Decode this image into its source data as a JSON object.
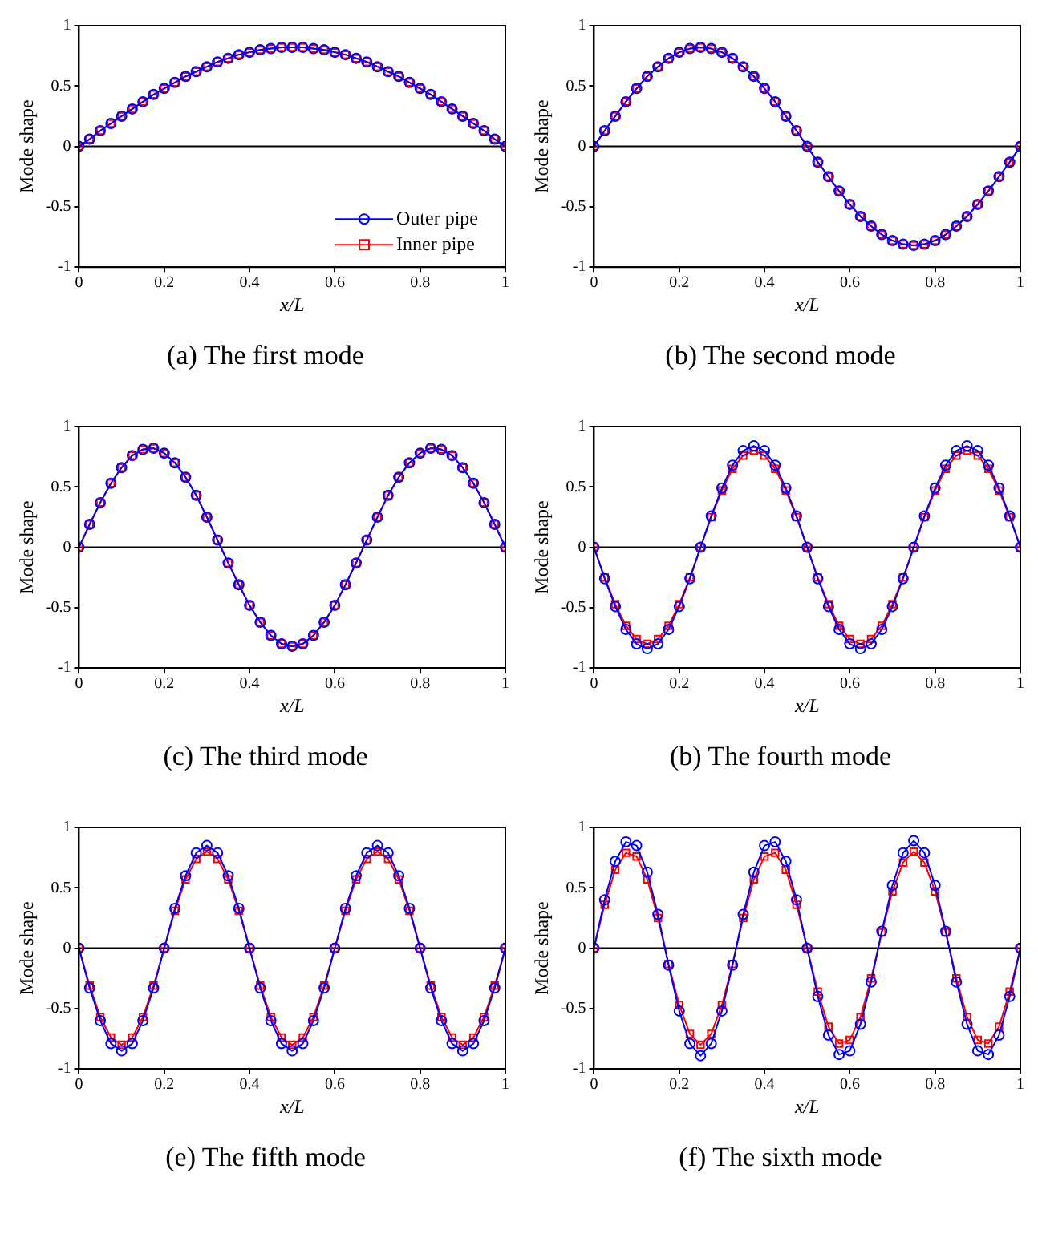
{
  "chart_data": [
    {
      "type": "line",
      "title": "(a) The first mode",
      "xlabel": "x/L",
      "ylabel": "Mode shape",
      "x": [
        0,
        0.025,
        0.05,
        0.075,
        0.1,
        0.125,
        0.15,
        0.175,
        0.2,
        0.225,
        0.25,
        0.275,
        0.3,
        0.325,
        0.35,
        0.375,
        0.4,
        0.425,
        0.45,
        0.475,
        0.5,
        0.525,
        0.55,
        0.575,
        0.6,
        0.625,
        0.65,
        0.675,
        0.7,
        0.725,
        0.75,
        0.775,
        0.8,
        0.825,
        0.85,
        0.875,
        0.9,
        0.925,
        0.95,
        0.975,
        1
      ],
      "xlim": [
        0,
        1
      ],
      "xticks": [
        0,
        0.2,
        0.4,
        0.6,
        0.8,
        1
      ],
      "ylim": [
        -1,
        1
      ],
      "yticks": [
        -1,
        -0.5,
        0,
        0.5,
        1
      ],
      "grid": false,
      "legend": "bottom right",
      "line_style": "solid",
      "ref_lines": [
        {
          "axis": "y",
          "value": 0,
          "color": "#000000"
        }
      ],
      "series": [
        {
          "name": "Outer pipe",
          "color": "#0000ff",
          "marker": "circle",
          "values": [
            0,
            0.06,
            0.13,
            0.19,
            0.25,
            0.31,
            0.37,
            0.43,
            0.48,
            0.53,
            0.58,
            0.62,
            0.66,
            0.7,
            0.73,
            0.76,
            0.78,
            0.8,
            0.81,
            0.82,
            0.82,
            0.82,
            0.81,
            0.8,
            0.78,
            0.76,
            0.73,
            0.7,
            0.66,
            0.62,
            0.58,
            0.53,
            0.48,
            0.43,
            0.37,
            0.31,
            0.25,
            0.19,
            0.13,
            0.06,
            0
          ]
        },
        {
          "name": "Inner pipe",
          "color": "#ff0000",
          "marker": "square",
          "values": [
            0,
            0.06,
            0.13,
            0.19,
            0.25,
            0.31,
            0.37,
            0.43,
            0.48,
            0.53,
            0.58,
            0.62,
            0.66,
            0.7,
            0.73,
            0.76,
            0.78,
            0.8,
            0.81,
            0.82,
            0.82,
            0.82,
            0.81,
            0.8,
            0.78,
            0.76,
            0.73,
            0.7,
            0.66,
            0.62,
            0.58,
            0.53,
            0.48,
            0.43,
            0.37,
            0.31,
            0.25,
            0.19,
            0.13,
            0.06,
            0
          ]
        }
      ]
    },
    {
      "type": "line",
      "title": "(b) The second mode",
      "xlabel": "x/L",
      "ylabel": "Mode shape",
      "x": [
        0,
        0.025,
        0.05,
        0.075,
        0.1,
        0.125,
        0.15,
        0.175,
        0.2,
        0.225,
        0.25,
        0.275,
        0.3,
        0.325,
        0.35,
        0.375,
        0.4,
        0.425,
        0.45,
        0.475,
        0.5,
        0.525,
        0.55,
        0.575,
        0.6,
        0.625,
        0.65,
        0.675,
        0.7,
        0.725,
        0.75,
        0.775,
        0.8,
        0.825,
        0.85,
        0.875,
        0.9,
        0.925,
        0.95,
        0.975,
        1
      ],
      "xlim": [
        0,
        1
      ],
      "xticks": [
        0,
        0.2,
        0.4,
        0.6,
        0.8,
        1
      ],
      "ylim": [
        -1,
        1
      ],
      "yticks": [
        -1,
        -0.5,
        0,
        0.5,
        1
      ],
      "grid": false,
      "line_style": "solid",
      "ref_lines": [
        {
          "axis": "y",
          "value": 0,
          "color": "#000000"
        }
      ],
      "series": [
        {
          "color": "#0000ff",
          "marker": "circle",
          "values": [
            0,
            0.13,
            0.25,
            0.37,
            0.48,
            0.58,
            0.66,
            0.73,
            0.78,
            0.81,
            0.82,
            0.81,
            0.78,
            0.73,
            0.66,
            0.58,
            0.48,
            0.37,
            0.25,
            0.13,
            0,
            -0.13,
            -0.25,
            -0.37,
            -0.48,
            -0.58,
            -0.66,
            -0.73,
            -0.78,
            -0.81,
            -0.82,
            -0.81,
            -0.78,
            -0.73,
            -0.66,
            -0.58,
            -0.48,
            -0.37,
            -0.25,
            -0.13,
            0
          ]
        },
        {
          "color": "#ff0000",
          "marker": "square",
          "values": [
            0,
            0.13,
            0.25,
            0.37,
            0.48,
            0.58,
            0.66,
            0.73,
            0.78,
            0.81,
            0.82,
            0.81,
            0.78,
            0.73,
            0.66,
            0.58,
            0.48,
            0.37,
            0.25,
            0.13,
            0,
            -0.13,
            -0.25,
            -0.37,
            -0.48,
            -0.58,
            -0.66,
            -0.73,
            -0.78,
            -0.81,
            -0.82,
            -0.81,
            -0.78,
            -0.73,
            -0.66,
            -0.58,
            -0.48,
            -0.37,
            -0.25,
            -0.13,
            0
          ]
        }
      ]
    },
    {
      "type": "line",
      "title": "(c) The third mode",
      "xlabel": "x/L",
      "ylabel": "Mode shape",
      "x": [
        0,
        0.025,
        0.05,
        0.075,
        0.1,
        0.125,
        0.15,
        0.175,
        0.2,
        0.225,
        0.25,
        0.275,
        0.3,
        0.325,
        0.35,
        0.375,
        0.4,
        0.425,
        0.45,
        0.475,
        0.5,
        0.525,
        0.55,
        0.575,
        0.6,
        0.625,
        0.65,
        0.675,
        0.7,
        0.725,
        0.75,
        0.775,
        0.8,
        0.825,
        0.85,
        0.875,
        0.9,
        0.925,
        0.95,
        0.975,
        1
      ],
      "xlim": [
        0,
        1
      ],
      "xticks": [
        0,
        0.2,
        0.4,
        0.6,
        0.8,
        1
      ],
      "ylim": [
        -1,
        1
      ],
      "yticks": [
        -1,
        -0.5,
        0,
        0.5,
        1
      ],
      "grid": false,
      "line_style": "solid",
      "ref_lines": [
        {
          "axis": "y",
          "value": 0,
          "color": "#000000"
        }
      ],
      "series": [
        {
          "color": "#0000ff",
          "marker": "circle",
          "values": [
            0,
            0.19,
            0.37,
            0.53,
            0.66,
            0.76,
            0.81,
            0.82,
            0.78,
            0.7,
            0.58,
            0.43,
            0.25,
            0.06,
            -0.13,
            -0.31,
            -0.48,
            -0.62,
            -0.73,
            -0.8,
            -0.82,
            -0.8,
            -0.73,
            -0.62,
            -0.48,
            -0.31,
            -0.13,
            0.06,
            0.25,
            0.43,
            0.58,
            0.7,
            0.78,
            0.82,
            0.81,
            0.76,
            0.66,
            0.53,
            0.37,
            0.19,
            0
          ]
        },
        {
          "color": "#ff0000",
          "marker": "square",
          "values": [
            0,
            0.19,
            0.37,
            0.53,
            0.66,
            0.76,
            0.81,
            0.82,
            0.78,
            0.7,
            0.58,
            0.43,
            0.25,
            0.06,
            -0.13,
            -0.31,
            -0.48,
            -0.62,
            -0.73,
            -0.8,
            -0.82,
            -0.8,
            -0.73,
            -0.62,
            -0.48,
            -0.31,
            -0.13,
            0.06,
            0.25,
            0.43,
            0.58,
            0.7,
            0.78,
            0.82,
            0.81,
            0.76,
            0.66,
            0.53,
            0.37,
            0.19,
            0
          ]
        }
      ]
    },
    {
      "type": "line",
      "title": "(b) The fourth mode",
      "xlabel": "x/L",
      "ylabel": "Mode shape",
      "x": [
        0,
        0.025,
        0.05,
        0.075,
        0.1,
        0.125,
        0.15,
        0.175,
        0.2,
        0.225,
        0.25,
        0.275,
        0.3,
        0.325,
        0.35,
        0.375,
        0.4,
        0.425,
        0.45,
        0.475,
        0.5,
        0.525,
        0.55,
        0.575,
        0.6,
        0.625,
        0.65,
        0.675,
        0.7,
        0.725,
        0.75,
        0.775,
        0.8,
        0.825,
        0.85,
        0.875,
        0.9,
        0.925,
        0.95,
        0.975,
        1
      ],
      "xlim": [
        0,
        1
      ],
      "xticks": [
        0,
        0.2,
        0.4,
        0.6,
        0.8,
        1
      ],
      "ylim": [
        -1,
        1
      ],
      "yticks": [
        -1,
        -0.5,
        0,
        0.5,
        1
      ],
      "grid": false,
      "line_style": "solid",
      "ref_lines": [
        {
          "axis": "y",
          "value": 0,
          "color": "#000000"
        }
      ],
      "series": [
        {
          "color": "#0000ff",
          "marker": "circle",
          "values": [
            0,
            -0.26,
            -0.49,
            -0.68,
            -0.8,
            -0.84,
            -0.8,
            -0.68,
            -0.49,
            -0.26,
            0,
            0.26,
            0.49,
            0.68,
            0.8,
            0.84,
            0.8,
            0.68,
            0.49,
            0.26,
            0,
            -0.26,
            -0.49,
            -0.68,
            -0.8,
            -0.84,
            -0.8,
            -0.68,
            -0.49,
            -0.26,
            0,
            0.26,
            0.49,
            0.68,
            0.8,
            0.84,
            0.8,
            0.68,
            0.49,
            0.26,
            0
          ]
        },
        {
          "color": "#ff0000",
          "marker": "square",
          "values": [
            0,
            -0.25,
            -0.47,
            -0.65,
            -0.76,
            -0.8,
            -0.76,
            -0.65,
            -0.47,
            -0.25,
            0,
            0.25,
            0.47,
            0.65,
            0.76,
            0.8,
            0.76,
            0.65,
            0.47,
            0.25,
            0,
            -0.25,
            -0.47,
            -0.65,
            -0.76,
            -0.8,
            -0.76,
            -0.65,
            -0.47,
            -0.25,
            0,
            0.25,
            0.47,
            0.65,
            0.76,
            0.8,
            0.76,
            0.65,
            0.47,
            0.25,
            0
          ]
        }
      ]
    },
    {
      "type": "line",
      "title": "(e) The fifth mode",
      "xlabel": "x/L",
      "ylabel": "Mode shape",
      "x": [
        0,
        0.025,
        0.05,
        0.075,
        0.1,
        0.125,
        0.15,
        0.175,
        0.2,
        0.225,
        0.25,
        0.275,
        0.3,
        0.325,
        0.35,
        0.375,
        0.4,
        0.425,
        0.45,
        0.475,
        0.5,
        0.525,
        0.55,
        0.575,
        0.6,
        0.625,
        0.65,
        0.675,
        0.7,
        0.725,
        0.75,
        0.775,
        0.8,
        0.825,
        0.85,
        0.875,
        0.9,
        0.925,
        0.95,
        0.975,
        1
      ],
      "xlim": [
        0,
        1
      ],
      "xticks": [
        0,
        0.2,
        0.4,
        0.6,
        0.8,
        1
      ],
      "ylim": [
        -1,
        1
      ],
      "yticks": [
        -1,
        -0.5,
        0,
        0.5,
        1
      ],
      "grid": false,
      "line_style": "solid",
      "ref_lines": [
        {
          "axis": "y",
          "value": 0,
          "color": "#000000"
        }
      ],
      "series": [
        {
          "color": "#0000ff",
          "marker": "circle",
          "values": [
            0,
            -0.33,
            -0.6,
            -0.79,
            -0.85,
            -0.79,
            -0.6,
            -0.33,
            0,
            0.33,
            0.6,
            0.79,
            0.85,
            0.79,
            0.6,
            0.33,
            0,
            -0.33,
            -0.6,
            -0.79,
            -0.85,
            -0.79,
            -0.6,
            -0.33,
            0,
            0.33,
            0.6,
            0.79,
            0.85,
            0.79,
            0.6,
            0.33,
            0,
            -0.33,
            -0.6,
            -0.79,
            -0.85,
            -0.79,
            -0.6,
            -0.33,
            0
          ]
        },
        {
          "color": "#ff0000",
          "marker": "square",
          "values": [
            0,
            -0.31,
            -0.57,
            -0.74,
            -0.8,
            -0.74,
            -0.57,
            -0.31,
            0,
            0.31,
            0.57,
            0.74,
            0.8,
            0.74,
            0.57,
            0.31,
            0,
            -0.31,
            -0.57,
            -0.74,
            -0.8,
            -0.74,
            -0.57,
            -0.31,
            0,
            0.31,
            0.57,
            0.74,
            0.8,
            0.74,
            0.57,
            0.31,
            0,
            -0.31,
            -0.57,
            -0.74,
            -0.8,
            -0.74,
            -0.57,
            -0.31,
            0
          ]
        }
      ]
    },
    {
      "type": "line",
      "title": "(f) The sixth mode",
      "xlabel": "x/L",
      "ylabel": "Mode shape",
      "x": [
        0,
        0.025,
        0.05,
        0.075,
        0.1,
        0.125,
        0.15,
        0.175,
        0.2,
        0.225,
        0.25,
        0.275,
        0.3,
        0.325,
        0.35,
        0.375,
        0.4,
        0.425,
        0.45,
        0.475,
        0.5,
        0.525,
        0.55,
        0.575,
        0.6,
        0.625,
        0.65,
        0.675,
        0.7,
        0.725,
        0.75,
        0.775,
        0.8,
        0.825,
        0.85,
        0.875,
        0.9,
        0.925,
        0.95,
        0.975,
        1
      ],
      "xlim": [
        0,
        1
      ],
      "xticks": [
        0,
        0.2,
        0.4,
        0.6,
        0.8,
        1
      ],
      "ylim": [
        -1,
        1
      ],
      "yticks": [
        -1,
        -0.5,
        0,
        0.5,
        1
      ],
      "grid": false,
      "line_style": "solid",
      "ref_lines": [
        {
          "axis": "y",
          "value": 0,
          "color": "#000000"
        }
      ],
      "series": [
        {
          "color": "#0000ff",
          "marker": "circle",
          "values": [
            0,
            0.4,
            0.72,
            0.88,
            0.85,
            0.63,
            0.28,
            -0.14,
            -0.52,
            -0.79,
            -0.89,
            -0.79,
            -0.52,
            -0.14,
            0.28,
            0.63,
            0.85,
            0.88,
            0.72,
            0.4,
            0,
            -0.4,
            -0.72,
            -0.88,
            -0.85,
            -0.63,
            -0.28,
            0.14,
            0.52,
            0.79,
            0.89,
            0.79,
            0.52,
            0.14,
            -0.28,
            -0.63,
            -0.85,
            -0.88,
            -0.72,
            -0.4,
            0
          ]
        },
        {
          "color": "#ff0000",
          "marker": "square",
          "values": [
            0,
            0.36,
            0.65,
            0.79,
            0.76,
            0.57,
            0.25,
            -0.13,
            -0.47,
            -0.71,
            -0.8,
            -0.71,
            -0.47,
            -0.13,
            0.25,
            0.57,
            0.76,
            0.79,
            0.65,
            0.36,
            0,
            -0.36,
            -0.65,
            -0.79,
            -0.76,
            -0.57,
            -0.25,
            0.13,
            0.47,
            0.71,
            0.8,
            0.71,
            0.47,
            0.13,
            -0.25,
            -0.57,
            -0.76,
            -0.79,
            -0.65,
            -0.36,
            0
          ]
        }
      ]
    }
  ]
}
